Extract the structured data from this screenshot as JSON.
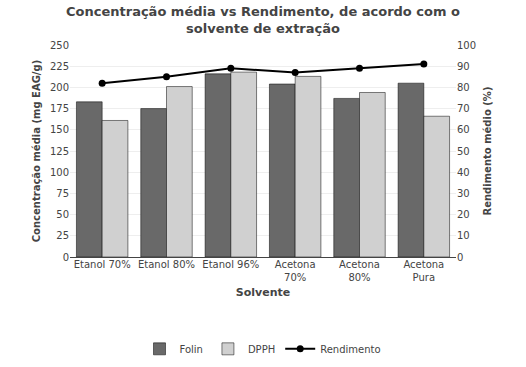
{
  "chart_data": {
    "type": "bar",
    "title": "Concentração média vs Rendimento, de acordo com o\nsolvente de extração",
    "xlabel": "Solvente",
    "ylabel": "Concentração média (mg EAG/g)",
    "y2label": "Rendimento médio (%)",
    "categories": [
      "Etanol 70%",
      "Etanol 80%",
      "Etanol 96%",
      "Acetona\n70%",
      "Acetona\n80%",
      "Acetona\nPura"
    ],
    "series": [
      {
        "name": "Folin",
        "color": "#696969",
        "values": [
          183,
          175,
          216,
          204,
          187,
          205
        ]
      },
      {
        "name": "DPPH",
        "color": "#d0d0d0",
        "values": [
          161,
          201,
          218,
          213,
          194,
          166
        ]
      },
      {
        "name": "Rendimento",
        "type": "line",
        "axis": "y2",
        "color": "#000000",
        "marker": "circle",
        "values": [
          82,
          85,
          89,
          87,
          89,
          91
        ]
      }
    ],
    "ylim": [
      0,
      250
    ],
    "yticks": [
      0,
      25,
      50,
      75,
      100,
      125,
      150,
      175,
      200,
      225,
      250
    ],
    "y2lim": [
      0,
      100
    ],
    "y2ticks": [
      0,
      10,
      20,
      30,
      40,
      50,
      60,
      70,
      80,
      90,
      100
    ],
    "grid": true,
    "legend": "bottom"
  }
}
